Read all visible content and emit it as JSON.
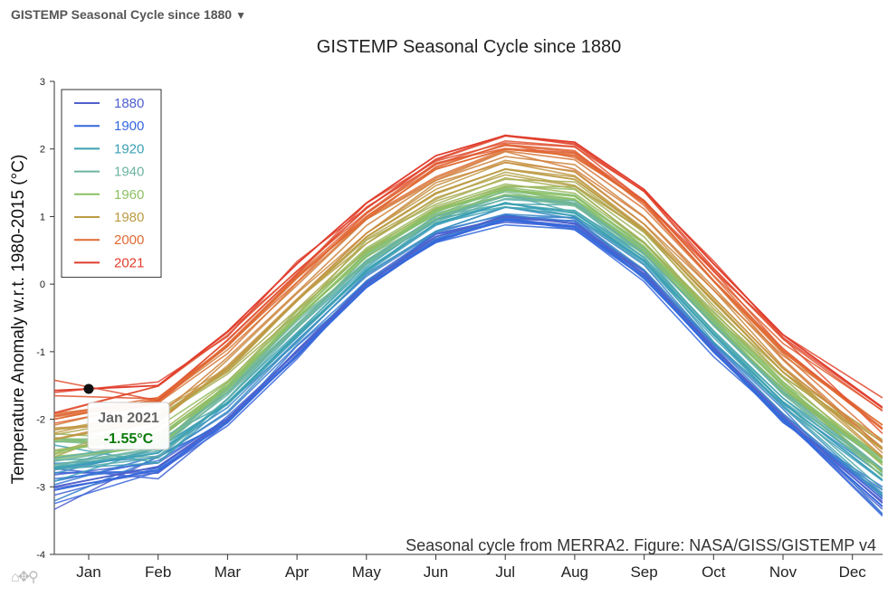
{
  "header": {
    "dropdown_label": "GISTEMP Seasonal Cycle since 1880",
    "dropdown_caret": "▼"
  },
  "toolbar": {
    "icons": [
      "home-icon",
      "pan-icon",
      "zoom-icon"
    ],
    "glyphs": "⌂✥⚲"
  },
  "chart_data": {
    "type": "line",
    "title": "GISTEMP Seasonal Cycle since 1880",
    "ylabel": "Temperature Anomaly w.r.t. 1980-2015 (°C)",
    "xlabel": "",
    "credit": "Seasonal cycle from MERRA2. Figure: NASA/GISS/GISTEMP v4",
    "ylim": [
      -4,
      3
    ],
    "yticks": [
      3,
      2,
      1,
      0,
      -1,
      -2,
      -3,
      -4
    ],
    "categories": [
      "Jan",
      "Feb",
      "Mar",
      "Apr",
      "May",
      "Jun",
      "Jul",
      "Aug",
      "Sep",
      "Oct",
      "Nov",
      "Dec"
    ],
    "legend_position": "top-left",
    "legend": [
      {
        "name": "1880",
        "color": "#5060cc"
      },
      {
        "name": "1900",
        "color": "#3468dc"
      },
      {
        "name": "1920",
        "color": "#3aa0b4"
      },
      {
        "name": "1940",
        "color": "#6cb4a0"
      },
      {
        "name": "1960",
        "color": "#8cc064"
      },
      {
        "name": "1980",
        "color": "#bc9c44"
      },
      {
        "name": "2000",
        "color": "#e06a34"
      },
      {
        "name": "2021",
        "color": "#e03c2c"
      }
    ],
    "series": [
      {
        "name": "1880",
        "color": "#5060cc",
        "values": [
          -2.9,
          -2.7,
          -2.0,
          -1.0,
          0.0,
          0.7,
          1.0,
          0.9,
          0.15,
          -0.95,
          -1.95,
          -2.85
        ]
      },
      {
        "name": "1900",
        "color": "#3468dc",
        "values": [
          -2.95,
          -2.75,
          -2.05,
          -1.05,
          -0.05,
          0.65,
          0.95,
          0.85,
          0.1,
          -1.0,
          -2.0,
          -2.9
        ]
      },
      {
        "name": "1920",
        "color": "#3aa0b4",
        "values": [
          -2.65,
          -2.5,
          -1.75,
          -0.75,
          0.2,
          0.9,
          1.2,
          1.05,
          0.35,
          -0.75,
          -1.75,
          -2.55
        ]
      },
      {
        "name": "1940",
        "color": "#6cb4a0",
        "values": [
          -2.5,
          -2.35,
          -1.6,
          -0.6,
          0.35,
          1.0,
          1.3,
          1.2,
          0.45,
          -0.6,
          -1.6,
          -2.4
        ]
      },
      {
        "name": "1960",
        "color": "#8cc064",
        "values": [
          -2.4,
          -2.25,
          -1.5,
          -0.5,
          0.45,
          1.1,
          1.4,
          1.3,
          0.55,
          -0.5,
          -1.5,
          -2.3
        ]
      },
      {
        "name": "1980",
        "color": "#bc9c44",
        "values": [
          -2.2,
          -2.0,
          -1.25,
          -0.25,
          0.7,
          1.35,
          1.7,
          1.55,
          0.8,
          -0.25,
          -1.3,
          -2.1
        ]
      },
      {
        "name": "2000",
        "color": "#e06a34",
        "values": [
          -1.9,
          -1.7,
          -0.9,
          0.1,
          1.0,
          1.7,
          2.0,
          1.9,
          1.2,
          0.05,
          -1.0,
          -1.8
        ]
      },
      {
        "name": "2021",
        "color": "#e03c2c",
        "values": [
          -1.55,
          -1.5,
          -0.7,
          0.3,
          1.2,
          1.9,
          2.2,
          2.1,
          1.4,
          0.3,
          -0.75,
          -1.5
        ]
      }
    ],
    "tooltip": {
      "label": "Jan 2021",
      "value": "-1.55°C",
      "x": "Jan",
      "y": -1.55
    }
  }
}
